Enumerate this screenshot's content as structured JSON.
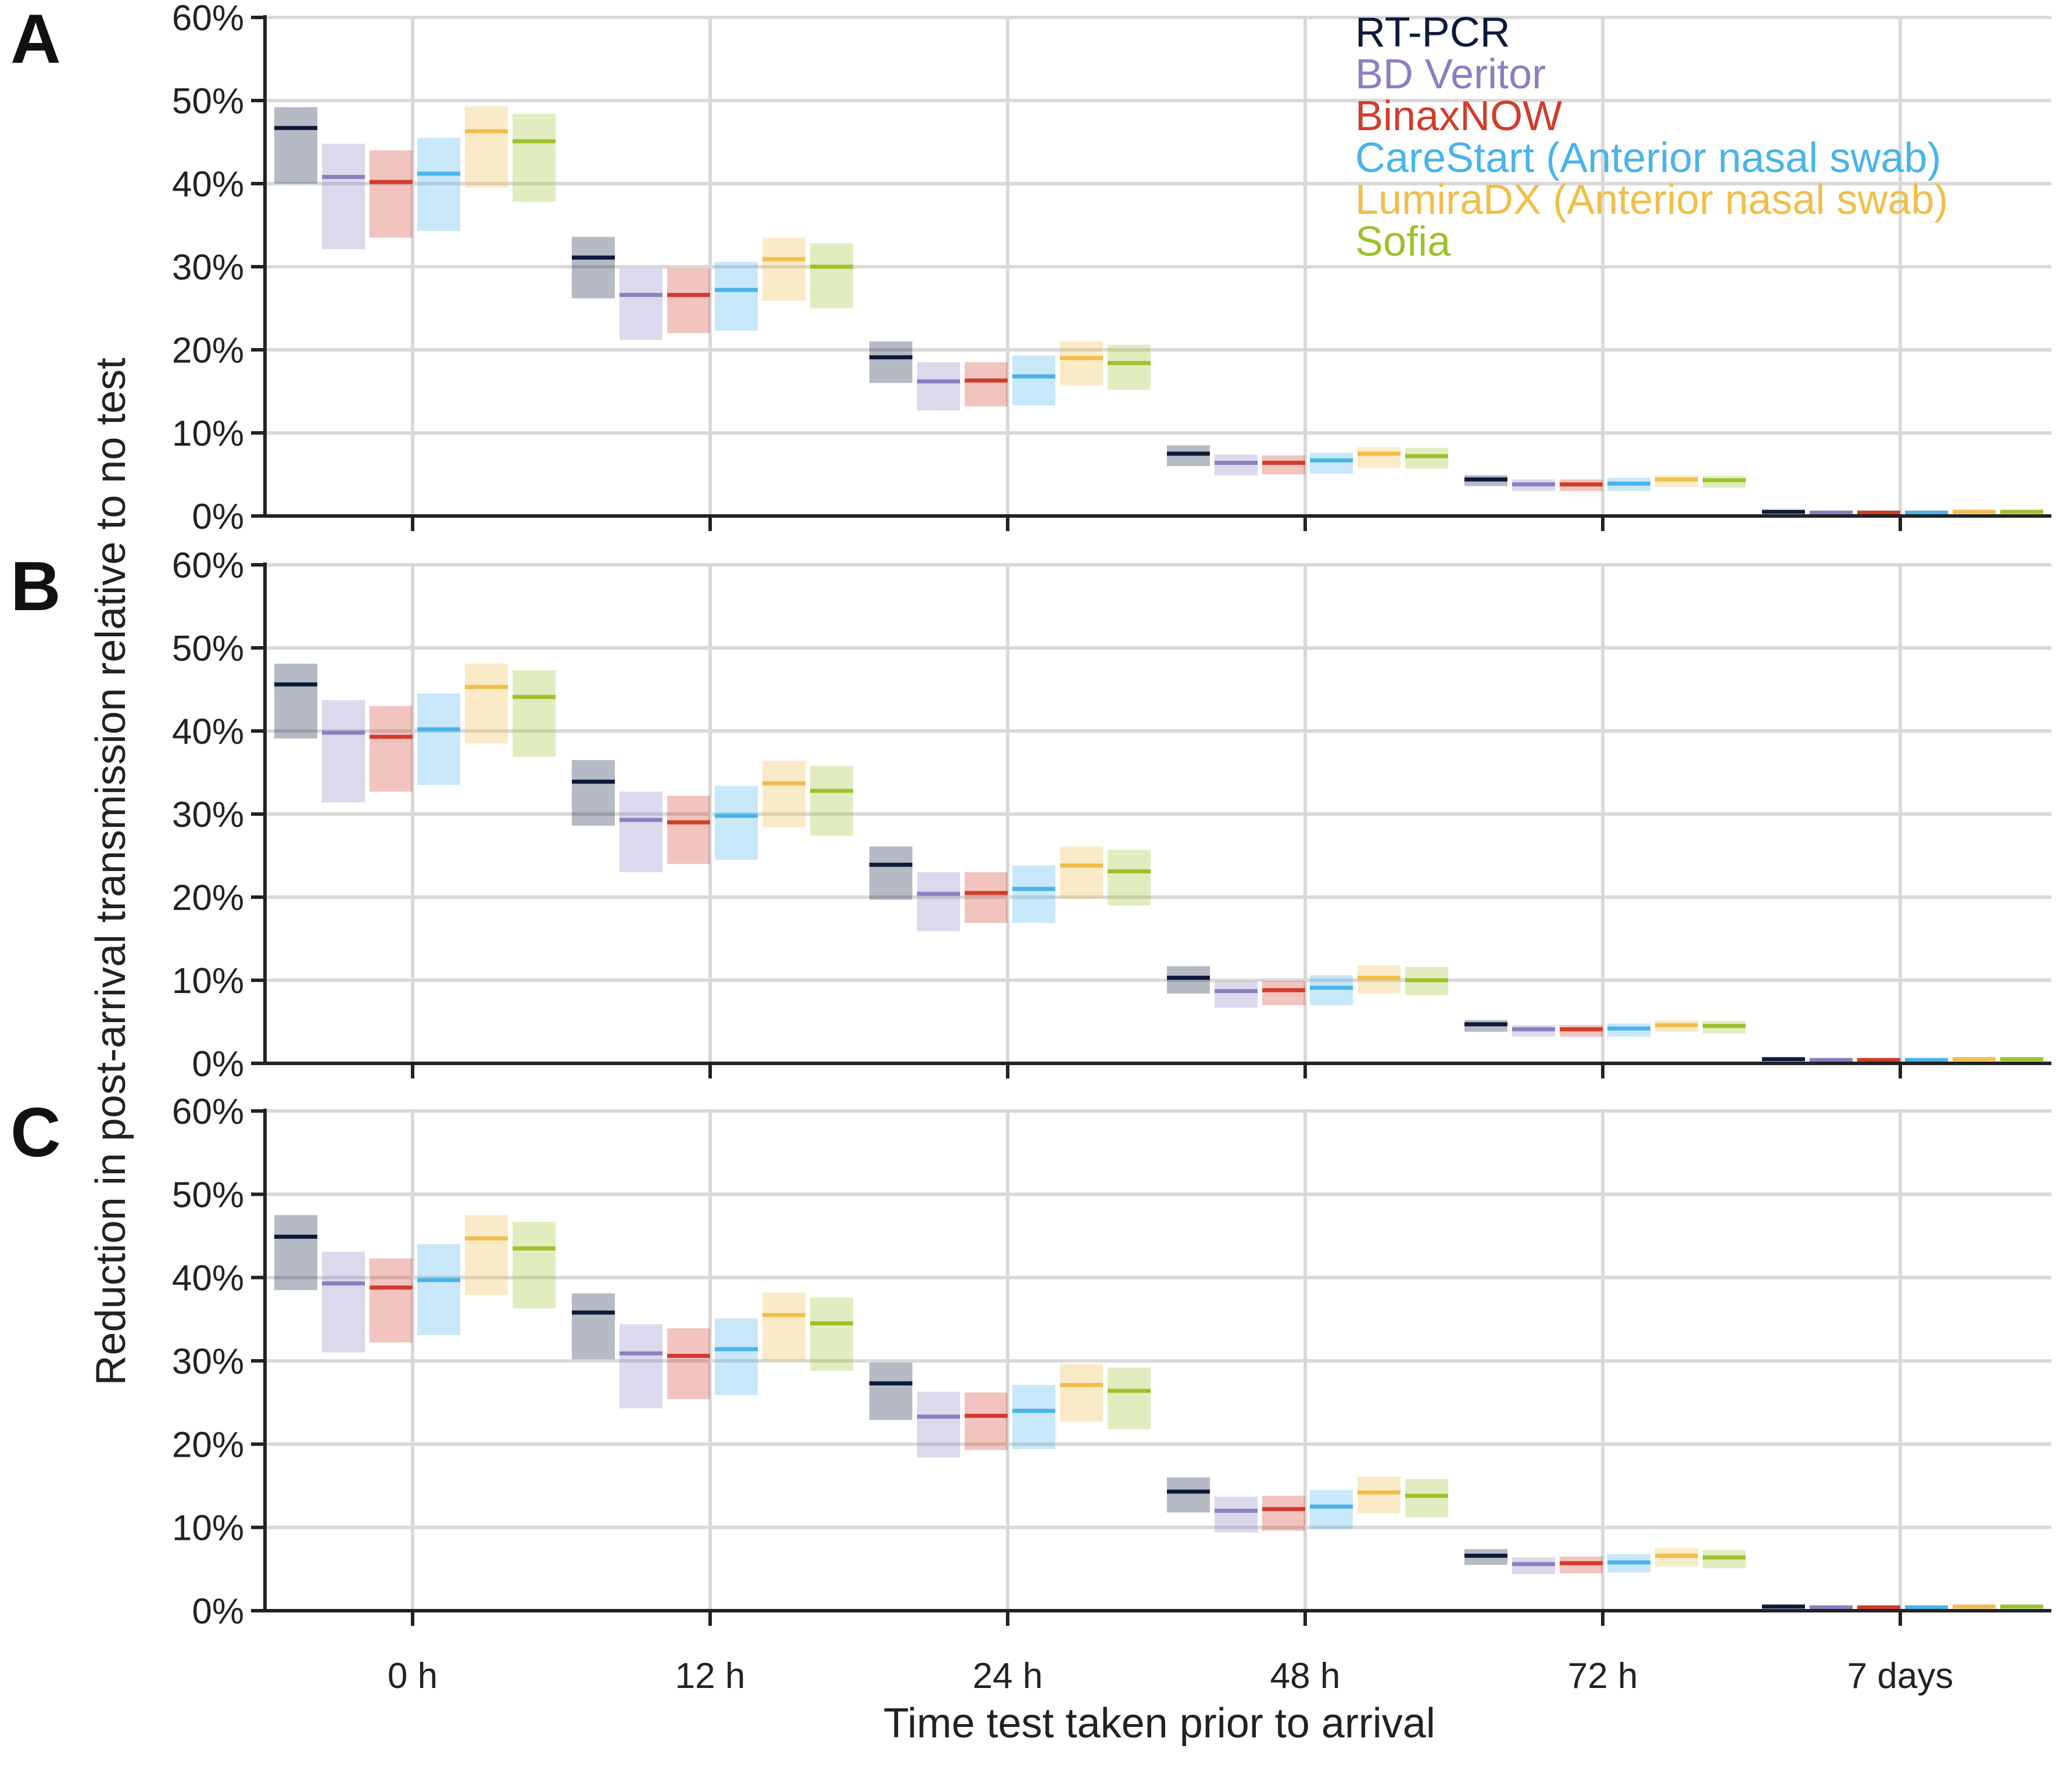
{
  "chart_data": {
    "type": "box",
    "xlabel": "Time test taken prior to arrival",
    "ylabel": "Reduction in post-arrival transmission relative to no test",
    "categories": [
      "0 h",
      "12 h",
      "24 h",
      "48 h",
      "72 h",
      "7 days"
    ],
    "yticks": [
      "0%",
      "10%",
      "20%",
      "30%",
      "40%",
      "50%",
      "60%"
    ],
    "ylim": [
      0,
      60
    ],
    "grid": true,
    "legend_position": "top-right (panel A)",
    "legend": [
      {
        "name": "RT-PCR",
        "color": "#0d1a3a"
      },
      {
        "name": "BD Veritor",
        "color": "#8a80bf"
      },
      {
        "name": "BinaxNOW",
        "color": "#d23c2a"
      },
      {
        "name": "CareStart (Anterior nasal swab)",
        "color": "#4ab3ea"
      },
      {
        "name": "LumiraDX (Anterior nasal swab)",
        "color": "#f0be4a"
      },
      {
        "name": "Sofia",
        "color": "#9cc22a"
      }
    ],
    "panels": [
      {
        "label": "A",
        "series": [
          {
            "name": "RT-PCR",
            "median": [
              46.7,
              31.1,
              19.1,
              7.5,
              4.4,
              0.5
            ],
            "low": [
              40.0,
              26.2,
              16.0,
              6.0,
              3.6,
              0.3
            ],
            "high": [
              49.2,
              33.6,
              21.0,
              8.5,
              4.9,
              0.6
            ]
          },
          {
            "name": "BD Veritor",
            "median": [
              40.8,
              26.6,
              16.2,
              6.4,
              3.8,
              0.4
            ],
            "low": [
              32.1,
              21.2,
              12.7,
              4.9,
              3.0,
              0.3
            ],
            "high": [
              44.8,
              29.8,
              18.5,
              7.4,
              4.4,
              0.5
            ]
          },
          {
            "name": "BinaxNOW",
            "median": [
              40.2,
              26.6,
              16.3,
              6.4,
              3.8,
              0.4
            ],
            "low": [
              33.5,
              22.0,
              13.2,
              5.0,
              3.0,
              0.3
            ],
            "high": [
              44.0,
              29.8,
              18.5,
              7.3,
              4.4,
              0.5
            ]
          },
          {
            "name": "CareStart (Anterior nasal swab)",
            "median": [
              41.2,
              27.2,
              16.8,
              6.7,
              3.9,
              0.4
            ],
            "low": [
              34.3,
              22.3,
              13.3,
              5.1,
              3.0,
              0.3
            ],
            "high": [
              45.5,
              30.6,
              19.3,
              7.6,
              4.6,
              0.5
            ]
          },
          {
            "name": "LumiraDX (Anterior nasal swab)",
            "median": [
              46.3,
              30.9,
              19.0,
              7.5,
              4.4,
              0.5
            ],
            "low": [
              39.5,
              25.9,
              15.7,
              5.8,
              3.5,
              0.3
            ],
            "high": [
              49.3,
              33.5,
              21.0,
              8.3,
              4.9,
              0.6
            ]
          },
          {
            "name": "Sofia",
            "median": [
              45.1,
              30.0,
              18.4,
              7.2,
              4.3,
              0.5
            ],
            "low": [
              37.8,
              25.0,
              15.2,
              5.7,
              3.4,
              0.3
            ],
            "high": [
              48.4,
              32.8,
              20.6,
              8.2,
              4.8,
              0.6
            ]
          }
        ]
      },
      {
        "label": "B",
        "series": [
          {
            "name": "RT-PCR",
            "median": [
              45.6,
              33.9,
              23.9,
              10.3,
              4.7,
              0.5
            ],
            "low": [
              39.1,
              28.6,
              19.7,
              8.4,
              3.8,
              0.3
            ],
            "high": [
              48.1,
              36.5,
              26.1,
              11.7,
              5.2,
              0.6
            ]
          },
          {
            "name": "BD Veritor",
            "median": [
              39.8,
              29.3,
              20.4,
              8.7,
              4.1,
              0.4
            ],
            "low": [
              31.4,
              23.0,
              15.9,
              6.7,
              3.2,
              0.3
            ],
            "high": [
              43.7,
              32.7,
              23.0,
              9.9,
              4.6,
              0.5
            ]
          },
          {
            "name": "BinaxNOW",
            "median": [
              39.3,
              29.0,
              20.5,
              8.8,
              4.1,
              0.4
            ],
            "low": [
              32.7,
              24.0,
              16.9,
              7.0,
              3.2,
              0.3
            ],
            "high": [
              43.0,
              32.2,
              23.0,
              9.9,
              4.6,
              0.5
            ]
          },
          {
            "name": "CareStart (Anterior nasal swab)",
            "median": [
              40.2,
              29.8,
              21.0,
              9.1,
              4.2,
              0.4
            ],
            "low": [
              33.5,
              24.5,
              16.9,
              7.0,
              3.2,
              0.3
            ],
            "high": [
              44.5,
              33.4,
              23.8,
              10.6,
              4.8,
              0.5
            ]
          },
          {
            "name": "LumiraDX (Anterior nasal swab)",
            "median": [
              45.3,
              33.7,
              23.8,
              10.3,
              4.6,
              0.5
            ],
            "low": [
              38.5,
              28.4,
              19.8,
              8.4,
              3.8,
              0.3
            ],
            "high": [
              48.1,
              36.4,
              26.1,
              11.8,
              5.2,
              0.6
            ]
          },
          {
            "name": "Sofia",
            "median": [
              44.1,
              32.8,
              23.1,
              10.0,
              4.5,
              0.5
            ],
            "low": [
              36.9,
              27.4,
              19.0,
              8.2,
              3.6,
              0.3
            ],
            "high": [
              47.3,
              35.8,
              25.7,
              11.6,
              5.1,
              0.6
            ]
          }
        ]
      },
      {
        "label": "C",
        "series": [
          {
            "name": "RT-PCR",
            "median": [
              44.9,
              35.8,
              27.3,
              14.3,
              6.6,
              0.5
            ],
            "low": [
              38.5,
              30.2,
              22.9,
              11.8,
              5.5,
              0.3
            ],
            "high": [
              47.5,
              38.1,
              29.8,
              16.0,
              7.4,
              0.6
            ]
          },
          {
            "name": "BD Veritor",
            "median": [
              39.3,
              30.9,
              23.3,
              12.0,
              5.6,
              0.4
            ],
            "low": [
              31.0,
              24.3,
              18.4,
              9.4,
              4.4,
              0.3
            ],
            "high": [
              43.1,
              34.4,
              26.3,
              13.7,
              6.4,
              0.5
            ]
          },
          {
            "name": "BinaxNOW",
            "median": [
              38.8,
              30.6,
              23.4,
              12.2,
              5.7,
              0.4
            ],
            "low": [
              32.2,
              25.4,
              19.3,
              9.6,
              4.5,
              0.3
            ],
            "high": [
              42.3,
              33.9,
              26.2,
              13.8,
              6.5,
              0.5
            ]
          },
          {
            "name": "CareStart (Anterior nasal swab)",
            "median": [
              39.7,
              31.4,
              24.0,
              12.5,
              5.8,
              0.4
            ],
            "low": [
              33.1,
              25.9,
              19.4,
              9.8,
              4.6,
              0.3
            ],
            "high": [
              44.0,
              35.1,
              27.1,
              14.5,
              6.8,
              0.5
            ]
          },
          {
            "name": "LumiraDX (Anterior nasal swab)",
            "median": [
              44.7,
              35.5,
              27.1,
              14.2,
              6.6,
              0.5
            ],
            "low": [
              37.9,
              30.0,
              22.7,
              11.7,
              5.3,
              0.3
            ],
            "high": [
              47.5,
              38.2,
              29.6,
              16.1,
              7.5,
              0.6
            ]
          },
          {
            "name": "Sofia",
            "median": [
              43.5,
              34.5,
              26.4,
              13.8,
              6.4,
              0.5
            ],
            "low": [
              36.3,
              28.8,
              21.8,
              11.2,
              5.1,
              0.3
            ],
            "high": [
              46.7,
              37.6,
              29.2,
              15.8,
              7.3,
              0.6
            ]
          }
        ]
      }
    ]
  }
}
